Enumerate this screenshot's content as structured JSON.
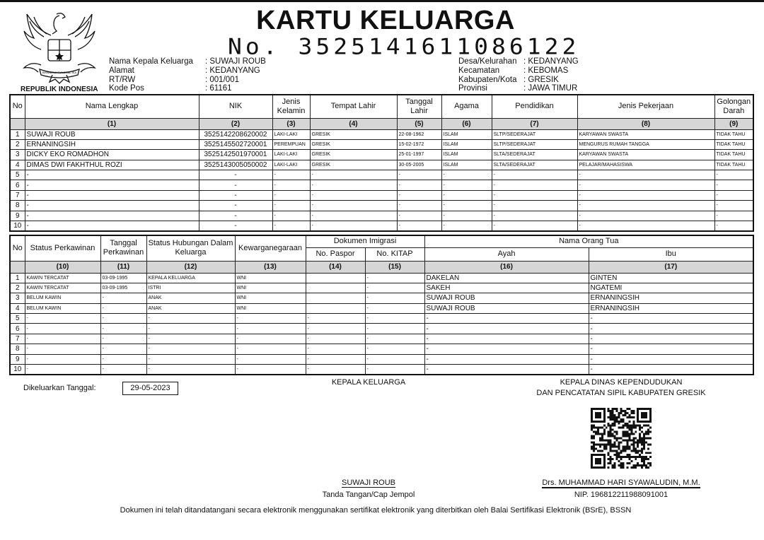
{
  "document": {
    "title": "KARTU KELUARGA",
    "number": "No. 3525141611086122",
    "emblem_caption": "REPUBLIK INDONESIA",
    "emblem_motto": "BHINNEKA TUNGGAL IKA"
  },
  "header_left": [
    {
      "label": "Nama Kepala Keluarga",
      "value": ": SUWAJI ROUB"
    },
    {
      "label": "Alamat",
      "value": ": KEDANYANG"
    },
    {
      "label": "RT/RW",
      "value": ": 001/001"
    },
    {
      "label": "Kode Pos",
      "value": ": 61161"
    }
  ],
  "header_right": [
    {
      "label": "Desa/Kelurahan",
      "value": ": KEDANYANG"
    },
    {
      "label": "Kecamatan",
      "value": ": KEBOMAS"
    },
    {
      "label": "Kabupaten/Kota",
      "value": ": GRESIK"
    },
    {
      "label": "Provinsi",
      "value": ": JAWA TIMUR"
    }
  ],
  "table1": {
    "headers": [
      "No",
      "Nama Lengkap",
      "NIK",
      "Jenis Kelamin",
      "Tempat Lahir",
      "Tanggal Lahir",
      "Agama",
      "Pendidikan",
      "Jenis Pekerjaan",
      "Golongan Darah"
    ],
    "numbers": [
      "",
      "(1)",
      "(2)",
      "(3)",
      "(4)",
      "(5)",
      "(6)",
      "(7)",
      "(8)",
      "(9)"
    ],
    "rows": [
      [
        "1",
        "SUWAJI ROUB",
        "3525142208620002",
        "LAKI-LAKI",
        "GRESIK",
        "22-08-1962",
        "ISLAM",
        "SLTP/SEDERAJAT",
        "KARYAWAN SWASTA",
        "TIDAK TAHU"
      ],
      [
        "2",
        "ERNANINGSIH",
        "3525145502720001",
        "PEREMPUAN",
        "GRESIK",
        "15-02-1972",
        "ISLAM",
        "SLTP/SEDERAJAT",
        "MENGURUS RUMAH TANGGA",
        "TIDAK TAHU"
      ],
      [
        "3",
        "DICKY EKO ROMADHON",
        "3525142501970001",
        "LAKI-LAKI",
        "GRESIK",
        "25-01-1997",
        "ISLAM",
        "SLTA/SEDERAJAT",
        "KARYAWAN SWASTA",
        "TIDAK TAHU"
      ],
      [
        "4",
        "DIMAS DWI FAKHTHUL ROZI",
        "3525143005050002",
        "LAKI-LAKI",
        "GRESIK",
        "30-05-2005",
        "ISLAM",
        "SLTA/SEDERAJAT",
        "PELAJAR/MAHASISWA",
        "TIDAK TAHU"
      ],
      [
        "5",
        "-",
        "-",
        "-",
        "-",
        "-",
        "-",
        "-",
        "-",
        "-"
      ],
      [
        "6",
        "-",
        "-",
        "-",
        "-",
        "-",
        "-",
        "-",
        "-",
        "-"
      ],
      [
        "7",
        "-",
        "-",
        "-",
        "-",
        "-",
        "-",
        "-",
        "-",
        "-"
      ],
      [
        "8",
        "-",
        "-",
        "-",
        "-",
        "-",
        "-",
        "-",
        "-",
        "-"
      ],
      [
        "9",
        "-",
        "-",
        "-",
        "-",
        "-",
        "-",
        "-",
        "-",
        "-"
      ],
      [
        "10",
        "-",
        "-",
        "-",
        "-",
        "-",
        "-",
        "-",
        "-",
        "-"
      ]
    ]
  },
  "table2": {
    "headers": {
      "no": "No",
      "status": "Status Perkawinan",
      "tanggal": "Tanggal Perkawinan",
      "hubungan": "Status Hubungan Dalam Keluarga",
      "kewarganegaraan": "Kewarganegaraan",
      "dokumen": "Dokumen Imigrasi",
      "paspor": "No. Paspor",
      "kitap": "No. KITAP",
      "orang_tua": "Nama Orang Tua",
      "ayah": "Ayah",
      "ibu": "Ibu"
    },
    "numbers": [
      "",
      "(10)",
      "(11)",
      "(12)",
      "(13)",
      "(14)",
      "(15)",
      "(16)",
      "(17)"
    ],
    "rows": [
      [
        "1",
        "KAWIN TERCATAT",
        "03-09-1995",
        "KEPALA KELUARGA",
        "WNI",
        "",
        "-",
        "DAKELAN",
        "GINTEN"
      ],
      [
        "2",
        "KAWIN TERCATAT",
        "03-09-1995",
        "ISTRI",
        "WNI",
        "",
        "-",
        "SAKEH",
        "NGATEMI"
      ],
      [
        "3",
        "BELUM KAWIN",
        "-",
        "ANAK",
        "WNI",
        "",
        "-",
        "SUWAJI ROUB",
        "ERNANINGSIH"
      ],
      [
        "4",
        "BELUM KAWIN",
        "-",
        "ANAK",
        "WNI",
        "",
        "-",
        "SUWAJI ROUB",
        "ERNANINGSIH"
      ],
      [
        "5",
        "-",
        "-",
        "-",
        "-",
        "-",
        "-",
        "-",
        "-"
      ],
      [
        "6",
        "-",
        "-",
        "-",
        "-",
        "-",
        "-",
        "-",
        "-"
      ],
      [
        "7",
        "-",
        "-",
        "-",
        "-",
        "-",
        "-",
        "-",
        "-"
      ],
      [
        "8",
        "-",
        "-",
        "-",
        "-",
        "-",
        "-",
        "-",
        "-"
      ],
      [
        "9",
        "-",
        "-",
        "-",
        "-",
        "-",
        "-",
        "-",
        "-"
      ],
      [
        "10",
        "-",
        "-",
        "-",
        "-",
        "-",
        "-",
        "-",
        "-"
      ]
    ]
  },
  "footer": {
    "issued_label": "Dikeluarkan Tanggal:",
    "issued_date": "29-05-2023",
    "head_title": "KEPALA KELUARGA",
    "head_name": "SUWAJI ROUB",
    "head_caption": "Tanda Tangan/Cap Jempol",
    "official_title_1": "KEPALA DINAS KEPENDUDUKAN",
    "official_title_2": "DAN PENCATATAN SIPIL KABUPATEN GRESIK",
    "official_name": "Drs. MUHAMMAD HARI SYAWALUDIN, M.M.",
    "official_nip": "NIP. 196812211988091001",
    "note": "Dokumen ini telah ditandatangani secara elektronik menggunakan sertifikat elektronik yang diterbitkan oleh Balai Sertifikasi Elektronik (BSrE), BSSN"
  }
}
